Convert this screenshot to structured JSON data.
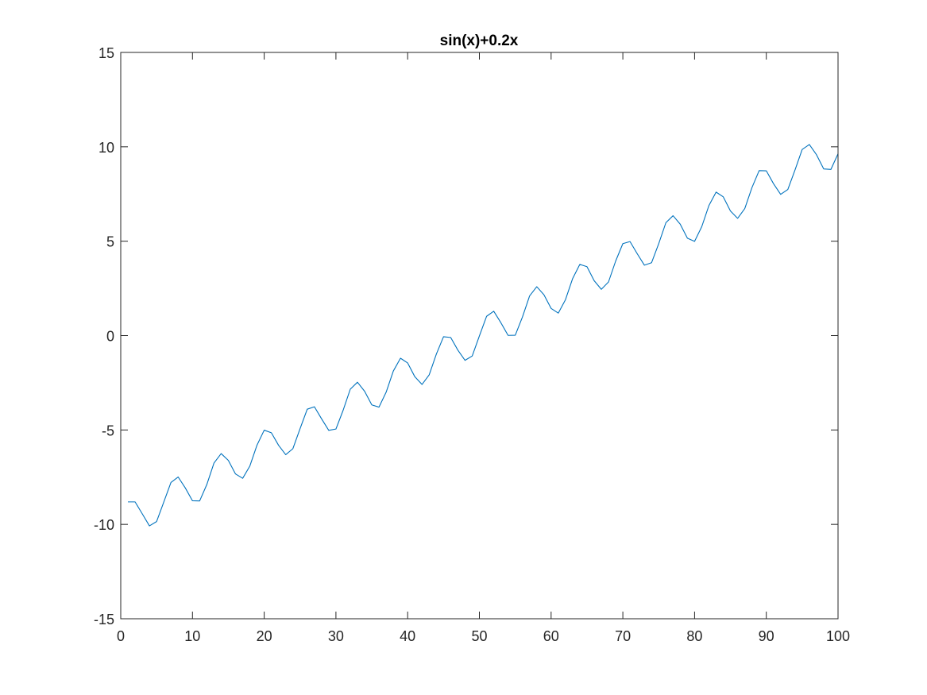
{
  "chart_data": {
    "type": "line",
    "title": "sin(x)+0.2x",
    "xlabel": "",
    "ylabel": "",
    "xlim": [
      0,
      100
    ],
    "ylim": [
      -15,
      15
    ],
    "xticks": [
      0,
      10,
      20,
      30,
      40,
      50,
      60,
      70,
      80,
      90,
      100
    ],
    "yticks": [
      -15,
      -10,
      -5,
      0,
      5,
      10,
      15
    ],
    "xtick_labels": [
      "0",
      "10",
      "20",
      "30",
      "40",
      "50",
      "60",
      "70",
      "80",
      "90",
      "100"
    ],
    "ytick_labels": [
      "-15",
      "-10",
      "-5",
      "0",
      "5",
      "10",
      "15"
    ],
    "grid": false,
    "box": true,
    "line_color": "#0072BD",
    "axis_color": "#262626",
    "series": [
      {
        "x": [
          1,
          2,
          3,
          4,
          5,
          6,
          7,
          8,
          9,
          10,
          11,
          12,
          13,
          14,
          15,
          16,
          17,
          18,
          19,
          20,
          21,
          22,
          23,
          24,
          25,
          26,
          27,
          28,
          29,
          30,
          31,
          32,
          33,
          34,
          35,
          36,
          37,
          38,
          39,
          40,
          41,
          42,
          43,
          44,
          45,
          46,
          47,
          48,
          49,
          50,
          51,
          52,
          53,
          54,
          55,
          56,
          57,
          58,
          59,
          60,
          61,
          62,
          63,
          64,
          65,
          66,
          67,
          68,
          69,
          70,
          71,
          72,
          73,
          74,
          75,
          76,
          77,
          78,
          79,
          80,
          81,
          82,
          83,
          84,
          85,
          86,
          87,
          88,
          89,
          90,
          91,
          92,
          93,
          94,
          95,
          96,
          97,
          98,
          99,
          100
        ],
        "values": [
          -8.81,
          -8.81,
          -9.44,
          -10.08,
          -9.85,
          -8.82,
          -7.78,
          -7.49,
          -8.07,
          -8.75,
          -8.76,
          -7.89,
          -6.75,
          -6.25,
          -6.61,
          -7.33,
          -7.56,
          -6.91,
          -5.8,
          -5.01,
          -5.15,
          -5.81,
          -6.31,
          -5.99,
          -4.93,
          -3.9,
          -3.77,
          -4.41,
          -5.02,
          -4.95,
          -3.96,
          -2.84,
          -2.47,
          -2.95,
          -3.67,
          -3.79,
          -3.0,
          -1.88,
          -1.2,
          -1.45,
          -2.18,
          -2.59,
          -2.08,
          -0.98,
          -0.06,
          -0.1,
          -0.77,
          -1.31,
          -1.08,
          -0.02,
          1.02,
          1.29,
          0.68,
          0.01,
          0.02,
          0.98,
          2.1,
          2.59,
          2.16,
          1.44,
          1.19,
          1.9,
          3.02,
          3.77,
          3.65,
          2.91,
          2.45,
          2.84,
          3.95,
          4.87,
          4.98,
          4.34,
          3.73,
          3.86,
          4.87,
          5.98,
          6.35,
          5.9,
          5.16,
          4.99,
          5.77,
          6.89,
          7.6,
          7.35,
          6.6,
          6.21,
          6.73,
          7.84,
          8.74,
          8.73,
          8.05,
          7.48,
          7.74,
          8.77,
          9.86,
          10.12,
          9.58,
          8.83,
          8.8,
          9.63
        ]
      }
    ]
  }
}
